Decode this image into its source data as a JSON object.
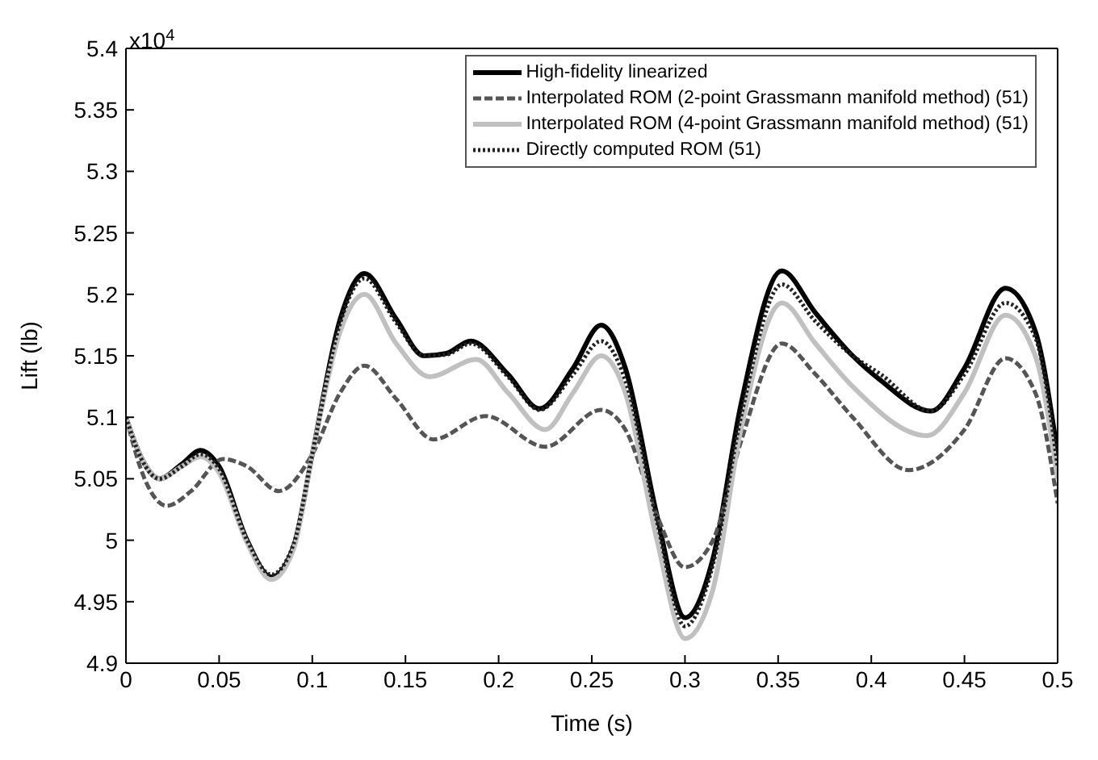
{
  "chart_data": {
    "type": "line",
    "xlabel": "Time (s)",
    "ylabel": "Lift (lb)",
    "annotations": [
      "x10$^{4}$"
    ],
    "xlim": [
      0,
      0.5
    ],
    "xticks": [
      0,
      0.05,
      0.1,
      0.15,
      0.2,
      0.25,
      0.3,
      0.35,
      0.4,
      0.45,
      0.5
    ],
    "ylim": [
      4.9,
      5.4
    ],
    "yticks": [
      4.9,
      4.95,
      5,
      5.05,
      5.1,
      5.15,
      5.2,
      5.25,
      5.3,
      5.35,
      5.4
    ],
    "legend": "top right",
    "marker": "none",
    "series": [
      {
        "name": "High-fidelity linearized",
        "color": "#000000",
        "line_style": "solid",
        "x": [
          0,
          0.008,
          0.018,
          0.03,
          0.04,
          0.05,
          0.065,
          0.078,
          0.09,
          0.1,
          0.115,
          0.128,
          0.145,
          0.16,
          0.172,
          0.185,
          0.205,
          0.222,
          0.24,
          0.255,
          0.268,
          0.285,
          0.3,
          0.315,
          0.33,
          0.352,
          0.37,
          0.39,
          0.405,
          0.432,
          0.45,
          0.472,
          0.488,
          0.5
        ],
        "values": [
          5.1,
          5.068,
          5.05,
          5.062,
          5.073,
          5.06,
          5.0,
          4.97,
          4.995,
          5.07,
          5.18,
          5.217,
          5.18,
          5.15,
          5.152,
          5.162,
          5.135,
          5.107,
          5.14,
          5.175,
          5.14,
          5.02,
          4.937,
          4.985,
          5.11,
          5.219,
          5.185,
          5.15,
          5.13,
          5.105,
          5.14,
          5.205,
          5.17,
          5.07
        ]
      },
      {
        "name": "Interpolated ROM (2-point Grassmann manifold method) (51)",
        "color": "#555555",
        "line_style": "dashed",
        "x": [
          0,
          0.01,
          0.022,
          0.035,
          0.052,
          0.065,
          0.082,
          0.1,
          0.115,
          0.128,
          0.145,
          0.165,
          0.193,
          0.225,
          0.255,
          0.268,
          0.285,
          0.3,
          0.315,
          0.33,
          0.352,
          0.37,
          0.39,
          0.42,
          0.45,
          0.472,
          0.488,
          0.5
        ],
        "values": [
          5.1,
          5.05,
          5.028,
          5.04,
          5.066,
          5.06,
          5.04,
          5.07,
          5.12,
          5.142,
          5.115,
          5.082,
          5.101,
          5.076,
          5.106,
          5.09,
          5.02,
          4.978,
          5.0,
          5.08,
          5.16,
          5.135,
          5.1,
          5.057,
          5.09,
          5.148,
          5.12,
          5.03
        ]
      },
      {
        "name": "Interpolated ROM (4-point Grassmann manifold method) (51)",
        "color": "#c0c0c0",
        "line_style": "solid",
        "x": [
          0,
          0.008,
          0.018,
          0.03,
          0.04,
          0.05,
          0.065,
          0.078,
          0.09,
          0.1,
          0.115,
          0.128,
          0.145,
          0.163,
          0.188,
          0.205,
          0.225,
          0.24,
          0.255,
          0.268,
          0.285,
          0.3,
          0.315,
          0.33,
          0.352,
          0.37,
          0.39,
          0.43,
          0.45,
          0.472,
          0.488,
          0.5
        ],
        "values": [
          5.1,
          5.068,
          5.05,
          5.06,
          5.068,
          5.055,
          4.998,
          4.968,
          4.993,
          5.07,
          5.17,
          5.2,
          5.16,
          5.133,
          5.147,
          5.12,
          5.09,
          5.12,
          5.15,
          5.12,
          5.0,
          4.92,
          4.96,
          5.09,
          5.193,
          5.16,
          5.125,
          5.085,
          5.12,
          5.183,
          5.15,
          5.05
        ]
      },
      {
        "name": "Directly computed ROM (51)",
        "color": "#222222",
        "line_style": "dotted",
        "x": [
          0,
          0.008,
          0.018,
          0.03,
          0.04,
          0.05,
          0.065,
          0.078,
          0.09,
          0.1,
          0.115,
          0.128,
          0.145,
          0.16,
          0.172,
          0.185,
          0.205,
          0.222,
          0.24,
          0.255,
          0.268,
          0.285,
          0.3,
          0.315,
          0.33,
          0.352,
          0.37,
          0.39,
          0.405,
          0.432,
          0.45,
          0.472,
          0.488,
          0.5
        ],
        "values": [
          5.1,
          5.067,
          5.05,
          5.06,
          5.07,
          5.058,
          5.0,
          4.972,
          4.997,
          5.07,
          5.177,
          5.213,
          5.177,
          5.15,
          5.151,
          5.16,
          5.133,
          5.106,
          5.135,
          5.162,
          5.13,
          5.015,
          4.93,
          4.98,
          5.1,
          5.208,
          5.178,
          5.15,
          5.135,
          5.105,
          5.135,
          5.193,
          5.165,
          5.06
        ]
      }
    ]
  }
}
